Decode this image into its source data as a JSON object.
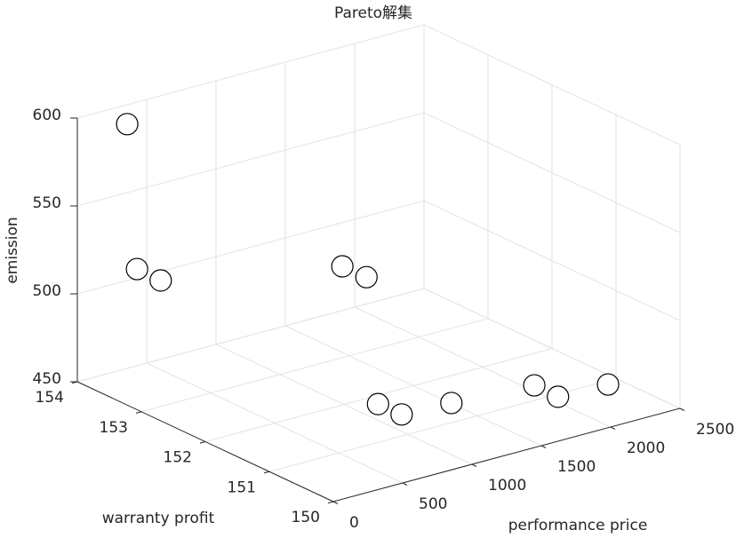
{
  "chart_data": {
    "type": "scatter3d",
    "title": "Pareto解集",
    "xlabel": "performance price",
    "ylabel": "warranty profit",
    "zlabel": "emission",
    "x": [
      341,
      172,
      255,
      1311,
      1402,
      987,
      1028,
      1299,
      1800,
      1883,
      2198
    ],
    "y": [
      153.96,
      153.44,
      153.25,
      152.7,
      152.52,
      151.44,
      151.16,
      150.97,
      150.76,
      150.57,
      150.47
    ],
    "z": [
      590,
      520,
      515,
      510,
      505,
      460,
      458,
      462,
      465,
      460,
      462
    ],
    "xlim": [
      0,
      2500
    ],
    "xticks": [
      0,
      500,
      1000,
      1500,
      2000,
      2500
    ],
    "ylim": [
      150,
      154
    ],
    "yticks": [
      150,
      151,
      152,
      153,
      154
    ],
    "zlim": [
      450,
      600
    ],
    "zticks": [
      450,
      500,
      550,
      600
    ],
    "grid": true,
    "marker_color": "#000000",
    "marker_fill": "#ffffff"
  }
}
